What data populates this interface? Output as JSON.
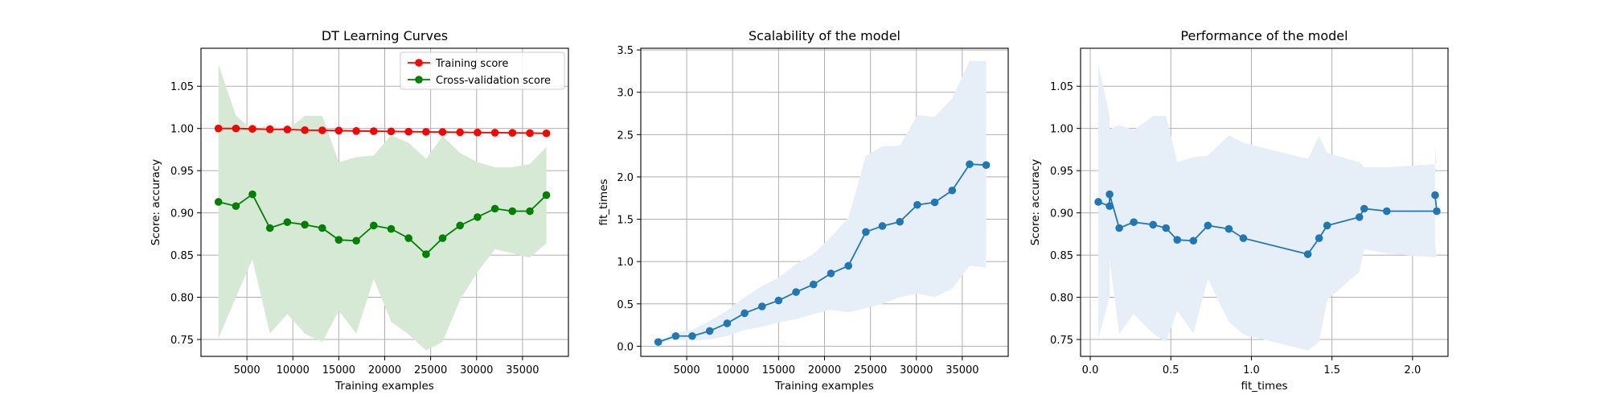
{
  "chart_data": [
    {
      "type": "line",
      "title": "DT Learning Curves",
      "xlabel": "Training examples",
      "ylabel": "Score: accuracy",
      "xlim": [
        0,
        40000
      ],
      "ylim": [
        0.73,
        1.095
      ],
      "xticks": [
        5000,
        10000,
        15000,
        20000,
        25000,
        30000,
        35000
      ],
      "xtick_labels": [
        "5000",
        "10000",
        "15000",
        "20000",
        "25000",
        "30000",
        "35000"
      ],
      "yticks": [
        0.75,
        0.8,
        0.85,
        0.9,
        0.95,
        1.0,
        1.05
      ],
      "ytick_labels": [
        "0.75",
        "0.80",
        "0.85",
        "0.90",
        "0.95",
        "1.00",
        "1.05"
      ],
      "grid": true,
      "legend": "top-right",
      "x": [
        1900,
        3800,
        5600,
        7500,
        9400,
        11300,
        13200,
        15000,
        16900,
        18800,
        20700,
        22600,
        24500,
        26300,
        28200,
        30100,
        32000,
        33900,
        35800,
        37600
      ],
      "series": [
        {
          "name": "Training score",
          "color": "#ff0000",
          "values": [
            1.0,
            1.0,
            0.9995,
            0.999,
            0.9988,
            0.998,
            0.9978,
            0.9975,
            0.997,
            0.9968,
            0.9965,
            0.9962,
            0.996,
            0.9958,
            0.9955,
            0.9952,
            0.995,
            0.9948,
            0.9945,
            0.9942
          ],
          "band_low": [
            0.999,
            0.999,
            0.9985,
            0.998,
            0.9978,
            0.997,
            0.9968,
            0.9965,
            0.996,
            0.9958,
            0.9955,
            0.9952,
            0.995,
            0.9948,
            0.9945,
            0.9942,
            0.994,
            0.9938,
            0.9935,
            0.9932
          ],
          "band_high": [
            1.001,
            1.001,
            1.0005,
            1.0,
            0.9998,
            0.999,
            0.9988,
            0.9985,
            0.998,
            0.9978,
            0.9975,
            0.9972,
            0.997,
            0.9968,
            0.9965,
            0.9962,
            0.996,
            0.9958,
            0.9955,
            0.9952
          ]
        },
        {
          "name": "Cross-validation score",
          "color": "#008000",
          "band_color": "#d5e9d5",
          "values": [
            0.913,
            0.908,
            0.922,
            0.882,
            0.889,
            0.886,
            0.882,
            0.868,
            0.867,
            0.885,
            0.881,
            0.87,
            0.851,
            0.87,
            0.885,
            0.895,
            0.905,
            0.902,
            0.902,
            0.921
          ],
          "band_low": [
            0.751,
            0.8,
            0.845,
            0.757,
            0.78,
            0.757,
            0.747,
            0.784,
            0.757,
            0.822,
            0.771,
            0.756,
            0.737,
            0.747,
            0.797,
            0.83,
            0.857,
            0.852,
            0.847,
            0.864
          ],
          "band_high": [
            1.076,
            1.015,
            0.999,
            1.004,
            0.998,
            1.015,
            1.015,
            0.96,
            0.966,
            0.968,
            0.992,
            0.983,
            0.964,
            0.991,
            0.971,
            0.96,
            0.954,
            0.954,
            0.958,
            0.978
          ]
        }
      ]
    },
    {
      "type": "line",
      "title": "Scalability of the model",
      "xlabel": "Training examples",
      "ylabel": "fit_times",
      "xlim": [
        0,
        40000
      ],
      "ylim": [
        -0.12,
        3.52
      ],
      "xticks": [
        5000,
        10000,
        15000,
        20000,
        25000,
        30000,
        35000
      ],
      "xtick_labels": [
        "5000",
        "10000",
        "15000",
        "20000",
        "25000",
        "30000",
        "35000"
      ],
      "yticks": [
        0.0,
        0.5,
        1.0,
        1.5,
        2.0,
        2.5,
        3.0,
        3.5
      ],
      "ytick_labels": [
        "0.0",
        "0.5",
        "1.0",
        "1.5",
        "2.0",
        "2.5",
        "3.0",
        "3.5"
      ],
      "grid": true,
      "x": [
        1900,
        3800,
        5600,
        7500,
        9400,
        11300,
        13200,
        15000,
        16900,
        18800,
        20700,
        22600,
        24500,
        26300,
        28200,
        30100,
        32000,
        33900,
        35800,
        37600
      ],
      "series": [
        {
          "color": "#1f77b4",
          "band_color": "#e6eff8",
          "values": [
            0.05,
            0.12,
            0.12,
            0.18,
            0.27,
            0.39,
            0.47,
            0.54,
            0.64,
            0.73,
            0.86,
            0.95,
            1.35,
            1.42,
            1.47,
            1.67,
            1.7,
            1.84,
            2.15,
            2.14
          ],
          "band_low": [
            0.04,
            0.08,
            0.06,
            0.08,
            0.12,
            0.19,
            0.23,
            0.28,
            0.32,
            0.38,
            0.43,
            0.4,
            0.45,
            0.5,
            0.58,
            0.62,
            0.58,
            0.68,
            0.95,
            0.93
          ],
          "band_high": [
            0.06,
            0.16,
            0.19,
            0.3,
            0.42,
            0.58,
            0.71,
            0.81,
            0.97,
            1.09,
            1.29,
            1.52,
            2.25,
            2.36,
            2.37,
            2.73,
            2.71,
            2.93,
            3.37,
            3.37
          ]
        }
      ]
    },
    {
      "type": "line",
      "title": "Performance of the model",
      "xlabel": "fit_times",
      "ylabel": "Score: accuracy",
      "xlim": [
        -0.06,
        2.22
      ],
      "ylim": [
        0.73,
        1.095
      ],
      "xticks": [
        0.0,
        0.5,
        1.0,
        1.5,
        2.0
      ],
      "xtick_labels": [
        "0.0",
        "0.5",
        "1.0",
        "1.5",
        "2.0"
      ],
      "yticks": [
        0.75,
        0.8,
        0.85,
        0.9,
        0.95,
        1.0,
        1.05
      ],
      "ytick_labels": [
        "0.75",
        "0.80",
        "0.85",
        "0.90",
        "0.95",
        "1.00",
        "1.05"
      ],
      "grid": true,
      "series": [
        {
          "color": "#1f77b4",
          "band_color": "#e6eff8",
          "x": [
            0.05,
            0.12,
            0.12,
            0.18,
            0.27,
            0.39,
            0.47,
            0.54,
            0.64,
            0.73,
            0.86,
            0.95,
            1.35,
            1.42,
            1.47,
            1.67,
            1.7,
            1.84,
            2.15,
            2.14
          ],
          "values": [
            0.913,
            0.908,
            0.922,
            0.882,
            0.889,
            0.886,
            0.882,
            0.868,
            0.867,
            0.885,
            0.881,
            0.87,
            0.851,
            0.87,
            0.885,
            0.895,
            0.905,
            0.902,
            0.902,
            0.921
          ],
          "band_low": [
            0.751,
            0.8,
            0.845,
            0.757,
            0.78,
            0.757,
            0.747,
            0.784,
            0.757,
            0.822,
            0.771,
            0.756,
            0.737,
            0.747,
            0.797,
            0.83,
            0.857,
            0.852,
            0.847,
            0.864
          ],
          "band_high": [
            1.076,
            1.015,
            0.999,
            1.004,
            0.998,
            1.015,
            1.015,
            0.96,
            0.966,
            0.968,
            0.992,
            0.983,
            0.964,
            0.991,
            0.971,
            0.96,
            0.954,
            0.954,
            0.958,
            0.978
          ]
        }
      ]
    }
  ]
}
